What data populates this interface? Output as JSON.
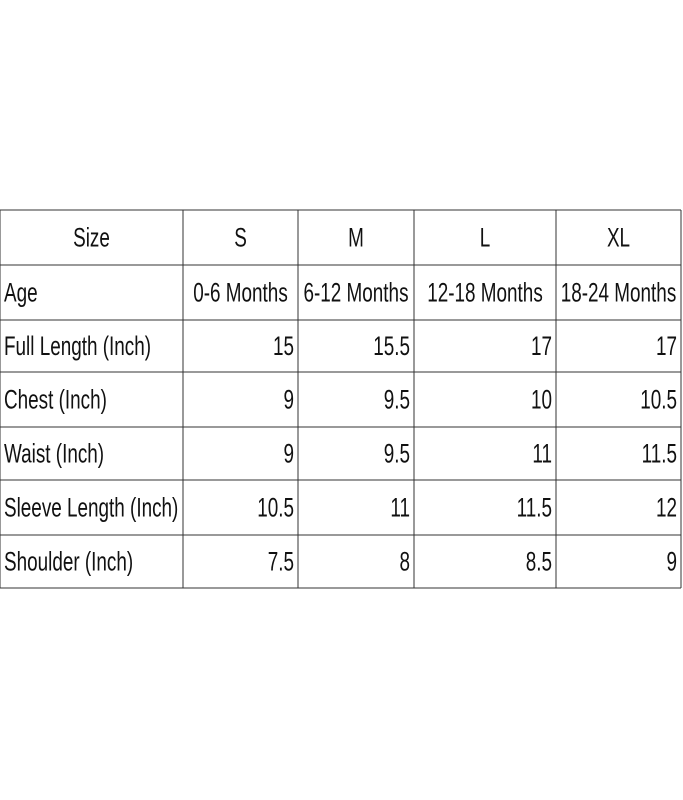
{
  "table": {
    "header": [
      "Size",
      "S",
      "M",
      "L",
      "XL"
    ],
    "rows": [
      [
        "Age",
        "0-6 Months",
        "6-12 Months",
        "12-18 Months",
        "18-24 Months"
      ],
      [
        "Full Length (Inch)",
        15,
        15.5,
        17,
        17
      ],
      [
        "Chest (Inch)",
        9,
        9.5,
        10,
        10.5
      ],
      [
        "Waist (Inch)",
        9,
        9.5,
        11,
        11.5
      ],
      [
        "Sleeve Length (Inch)",
        10.5,
        11,
        11.5,
        12
      ],
      [
        "Shoulder (Inch)",
        7.5,
        8,
        8.5,
        9
      ]
    ]
  }
}
